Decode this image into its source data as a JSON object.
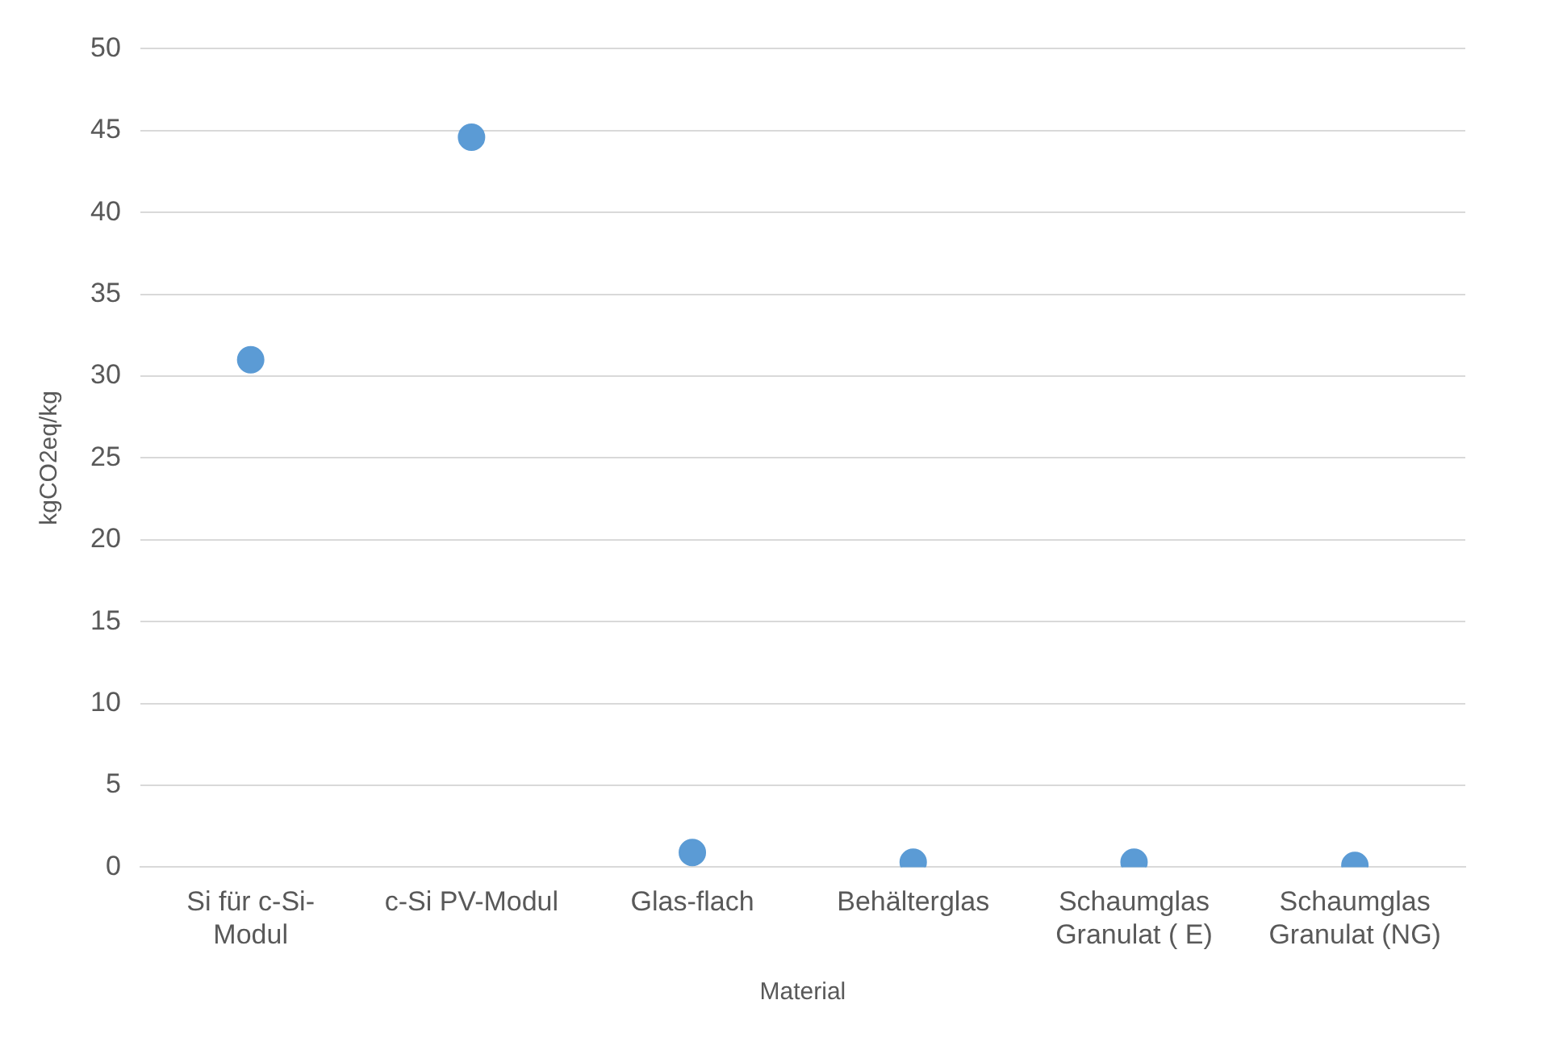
{
  "chart_data": {
    "type": "scatter",
    "xlabel": "Material",
    "ylabel": "kgCO2eq/kg",
    "categories": [
      "Si für c-Si-Modul",
      "c-Si PV-Modul",
      "Glas-flach",
      "Behälterglas",
      "Schaumglas Granulat ( E)",
      "Schaumglas Granulat (NG)"
    ],
    "series": [
      {
        "color": "#5b9bd5",
        "values": [
          31.0,
          44.6,
          0.9,
          0.3,
          0.3,
          0.1
        ]
      }
    ],
    "ylim": [
      0,
      50
    ],
    "yticks": [
      0,
      5,
      10,
      15,
      20,
      25,
      30,
      35,
      40,
      45,
      50
    ],
    "grid": "y",
    "marker": "circle",
    "legend": false
  }
}
